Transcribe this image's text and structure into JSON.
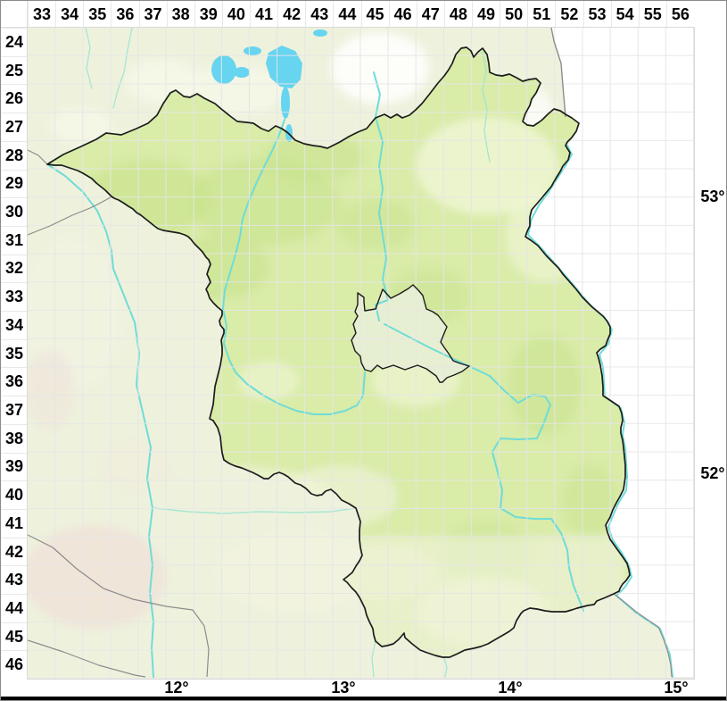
{
  "grid": {
    "col_labels": [
      "33",
      "34",
      "35",
      "36",
      "37",
      "38",
      "39",
      "40",
      "41",
      "42",
      "43",
      "44",
      "45",
      "46",
      "47",
      "48",
      "49",
      "50",
      "51",
      "52",
      "53",
      "54",
      "55",
      "56"
    ],
    "row_labels": [
      "24",
      "25",
      "26",
      "27",
      "28",
      "29",
      "30",
      "31",
      "32",
      "33",
      "34",
      "35",
      "36",
      "37",
      "38",
      "39",
      "40",
      "41",
      "42",
      "43",
      "44",
      "45",
      "46"
    ]
  },
  "axes": {
    "longitude_labels": [
      "12°",
      "13°",
      "14°",
      "15°"
    ],
    "latitude_labels": [
      "53°",
      "52°"
    ]
  },
  "map": {
    "region_fill": "#d9eca8",
    "outside_fill": "#eef2dd",
    "poland_fill": "#ffffff",
    "berlin_fill": "#e7efd2",
    "water_color": "#6fdcd8",
    "stream_color": "#9fe6d2",
    "lake_color": "#67d4f0",
    "border_color": "#1c1c1c",
    "neighbor_border_color": "#8c8c8c",
    "grid_line_color": "#e6e6e6"
  }
}
